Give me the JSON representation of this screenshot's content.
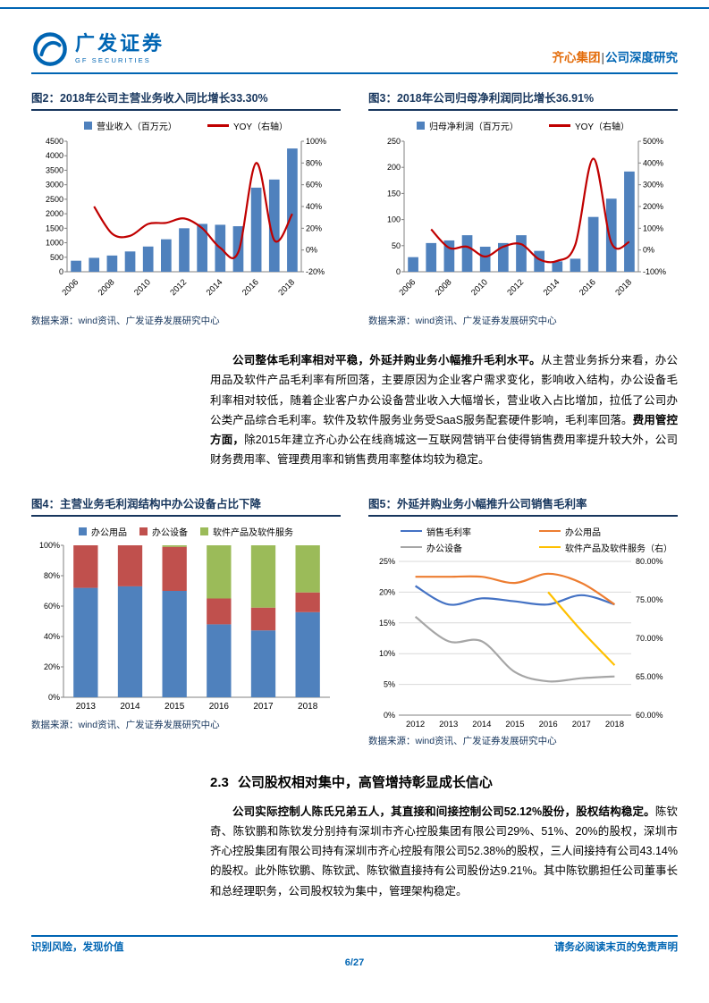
{
  "colors": {
    "brand_blue": "#0065B3",
    "title_navy": "#17365D",
    "company_orange": "#E36C0A"
  },
  "header": {
    "brand_cn": "广发证券",
    "brand_en": "GF SECURITIES",
    "company": "齐心集团",
    "separator": "|",
    "report_type": "公司深度研究"
  },
  "body": {
    "p1": {
      "lead": "公司整体毛利率相对平稳，外延并购业务小幅推升毛利水平。",
      "text_a": "从主营业务拆分来看，办公用品及软件产品毛利率有所回落，主要原因为企业客户需求变化，影响收入结构，办公设备毛利率相对较低，随着企业客户办公设备营业收入大幅增长，营业收入占比增加，拉低了公司办公类产品综合毛利率。软件及软件服务业务受SaaS服务配套硬件影响，毛利率回落。",
      "bold_b": "费用管控方面，",
      "text_c": "除2015年建立齐心办公在线商城这一互联网营销平台使得销售费用率提升较大外，公司财务费用率、管理费用率和销售费用率整体均较为稳定。"
    },
    "section": {
      "number": "2.3",
      "title": "公司股权相对集中，高管增持彰显成长信心"
    },
    "p2": {
      "lead": "公司实际控制人陈氏兄弟五人，其直接和间接控制公司52.12%股份，股权结构稳定。",
      "text": "陈钦奇、陈钦鹏和陈钦发分别持有深圳市齐心控股集团有限公司29%、51%、20%的股权，深圳市齐心控股集团有限公司持有深圳市齐心控股有限公司52.38%的股权，三人间接持有公司43.14%的股权。此外陈钦鹏、陈钦武、陈钦徽直接持有公司股份达9.21%。其中陈钦鹏担任公司董事长和总经理职务，公司股权较为集中，管理架构稳定。"
    }
  },
  "footer": {
    "left": "识别风险，发现价值",
    "page": "6/27",
    "right": "请务必阅读末页的免责声明"
  },
  "chart_data": [
    {
      "id": "fig2",
      "type": "bar-line",
      "title": "图2：2018年公司主营业务收入同比增长33.30%",
      "source": "数据来源：wind资讯、广发证券发展研究中心",
      "categories": [
        "2006",
        "2007",
        "2008",
        "2009",
        "2010",
        "2011",
        "2012",
        "2013",
        "2014",
        "2015",
        "2016",
        "2017",
        "2018"
      ],
      "x_tick_every": 2,
      "bar": {
        "name": "营业收入（百万元）",
        "color": "#4F81BD",
        "values": [
          380,
          480,
          560,
          700,
          870,
          1120,
          1500,
          1650,
          1620,
          1570,
          2900,
          3180,
          4250
        ]
      },
      "line": {
        "name": "YOY（右轴）",
        "color": "#C00000",
        "axis": "right",
        "values": [
          null,
          40,
          15,
          13,
          24,
          25,
          29,
          20,
          2,
          -2,
          80,
          9,
          33.3
        ]
      },
      "y_left": {
        "min": 0,
        "max": 4500,
        "step": 500,
        "suffix": ""
      },
      "y_right": {
        "min": -20,
        "max": 100,
        "step": 20,
        "suffix": "%"
      },
      "legend": [
        {
          "label": "营业收入（百万元）",
          "color": "#4F81BD",
          "marker": "box"
        },
        {
          "label": "YOY（右轴）",
          "color": "#C00000",
          "marker": "line"
        }
      ]
    },
    {
      "id": "fig3",
      "type": "bar-line",
      "title": "图3：2018年公司归母净利润同比增长36.91%",
      "source": "数据来源：wind资讯、广发证券发展研究中心",
      "categories": [
        "2006",
        "2007",
        "2008",
        "2009",
        "2010",
        "2011",
        "2012",
        "2013",
        "2014",
        "2015",
        "2016",
        "2017",
        "2018"
      ],
      "x_tick_every": 2,
      "bar": {
        "name": "归母净利润（百万元）",
        "color": "#4F81BD",
        "values": [
          28,
          55,
          60,
          70,
          48,
          55,
          70,
          40,
          20,
          25,
          105,
          140,
          192
        ]
      },
      "line": {
        "name": "YOY（右轴）",
        "color": "#C00000",
        "axis": "right",
        "values": [
          null,
          95,
          10,
          15,
          -30,
          15,
          27,
          -43,
          -50,
          25,
          420,
          33,
          36.9
        ]
      },
      "y_left": {
        "min": 0,
        "max": 250,
        "step": 50,
        "suffix": ""
      },
      "y_right": {
        "min": -100,
        "max": 500,
        "step": 100,
        "suffix": "%"
      },
      "legend": [
        {
          "label": "归母净利润（百万元）",
          "color": "#4F81BD",
          "marker": "box"
        },
        {
          "label": "YOY（右轴）",
          "color": "#C00000",
          "marker": "line"
        }
      ]
    },
    {
      "id": "fig4",
      "type": "stacked-bar",
      "title": "图4：主营业务毛利润结构中办公设备占比下降",
      "source": "数据来源：wind资讯、广发证券发展研究中心",
      "categories": [
        "2013",
        "2014",
        "2015",
        "2016",
        "2017",
        "2018"
      ],
      "series": [
        {
          "name": "办公用品",
          "color": "#4F81BD",
          "values": [
            72,
            73,
            70,
            48,
            44,
            56
          ]
        },
        {
          "name": "办公设备",
          "color": "#C0504D",
          "values": [
            28,
            27,
            29,
            17,
            15,
            13
          ]
        },
        {
          "name": "软件产品及软件服务",
          "color": "#9BBB59",
          "values": [
            0,
            0,
            1,
            35,
            41,
            31
          ]
        }
      ],
      "y_left": {
        "min": 0,
        "max": 100,
        "step": 20,
        "suffix": "%"
      },
      "legend": [
        {
          "label": "办公用品",
          "color": "#4F81BD",
          "marker": "box"
        },
        {
          "label": "办公设备",
          "color": "#C0504D",
          "marker": "box"
        },
        {
          "label": "软件产品及软件服务",
          "color": "#9BBB59",
          "marker": "box"
        }
      ]
    },
    {
      "id": "fig5",
      "type": "multi-line",
      "title": "图5：外延并购业务小幅推升公司销售毛利率",
      "source": "数据来源：wind资讯、广发证券发展研究中心",
      "categories": [
        "2012",
        "2013",
        "2014",
        "2015",
        "2016",
        "2017",
        "2018"
      ],
      "series": [
        {
          "name": "销售毛利率",
          "color": "#4472C4",
          "axis": "left",
          "values": [
            21,
            18,
            19,
            18.5,
            18,
            19.5,
            18
          ]
        },
        {
          "name": "办公用品",
          "color": "#ED7D31",
          "axis": "left",
          "values": [
            22.5,
            22.5,
            22.5,
            21.5,
            23,
            21.5,
            18
          ]
        },
        {
          "name": "办公设备",
          "color": "#A6A6A6",
          "axis": "left",
          "values": [
            16,
            12,
            12,
            7,
            5.5,
            6,
            6.3
          ]
        },
        {
          "name": "软件产品及软件服务（右）",
          "color": "#FFC000",
          "axis": "right",
          "values": [
            null,
            null,
            null,
            null,
            76,
            71,
            66.5
          ]
        }
      ],
      "y_left": {
        "min": 0,
        "max": 25,
        "step": 5,
        "suffix": "%"
      },
      "y_right": {
        "min": 60,
        "max": 80,
        "step": 5,
        "suffix": "%",
        "decimals": 2
      },
      "legend": [
        {
          "label": "销售毛利率",
          "color": "#4472C4",
          "marker": "line"
        },
        {
          "label": "办公用品",
          "color": "#ED7D31",
          "marker": "line"
        },
        {
          "label": "办公设备",
          "color": "#A6A6A6",
          "marker": "line"
        },
        {
          "label": "软件产品及软件服务（右）",
          "color": "#FFC000",
          "marker": "line"
        }
      ]
    }
  ]
}
